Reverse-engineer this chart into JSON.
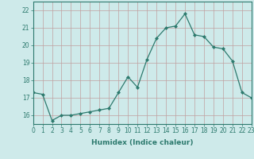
{
  "x": [
    0,
    1,
    2,
    3,
    4,
    5,
    6,
    7,
    8,
    9,
    10,
    11,
    12,
    13,
    14,
    15,
    16,
    17,
    18,
    19,
    20,
    21,
    22,
    23
  ],
  "y": [
    17.3,
    17.2,
    15.7,
    16.0,
    16.0,
    16.1,
    16.2,
    16.3,
    16.4,
    17.3,
    18.2,
    17.6,
    19.2,
    20.4,
    21.0,
    21.1,
    21.8,
    20.6,
    20.5,
    19.9,
    19.8,
    19.1,
    17.3,
    17.0
  ],
  "xlabel": "Humidex (Indice chaleur)",
  "xlim": [
    0,
    23
  ],
  "ylim": [
    15.5,
    22.5
  ],
  "yticks": [
    16,
    17,
    18,
    19,
    20,
    21,
    22
  ],
  "xticks": [
    0,
    1,
    2,
    3,
    4,
    5,
    6,
    7,
    8,
    9,
    10,
    11,
    12,
    13,
    14,
    15,
    16,
    17,
    18,
    19,
    20,
    21,
    22,
    23
  ],
  "line_color": "#2d7a6e",
  "marker": "D",
  "marker_size": 2.0,
  "bg_color": "#ceeaea",
  "grid_color": "#c0a0a0",
  "spine_color": "#2d7a6e",
  "tick_label_fontsize": 5.5,
  "xlabel_fontsize": 6.5
}
